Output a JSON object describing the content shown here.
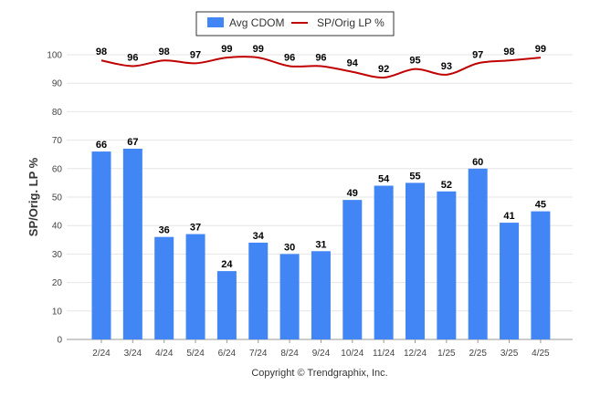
{
  "chart_data": {
    "type": "bar",
    "categories": [
      "2/24",
      "3/24",
      "4/24",
      "5/24",
      "6/24",
      "7/24",
      "8/24",
      "9/24",
      "10/24",
      "11/24",
      "12/24",
      "1/25",
      "2/25",
      "3/25",
      "4/25"
    ],
    "series": [
      {
        "name": "Avg CDOM",
        "type": "bar",
        "color": "#4285f4",
        "values": [
          66,
          67,
          36,
          37,
          24,
          34,
          30,
          31,
          49,
          54,
          55,
          52,
          60,
          41,
          45
        ]
      },
      {
        "name": "SP/Orig LP %",
        "type": "line",
        "color": "#c00000",
        "values": [
          98,
          96,
          98,
          97,
          99,
          99,
          96,
          96,
          94,
          92,
          95,
          93,
          97,
          98,
          99
        ]
      }
    ],
    "ylabel": "SP/Orig. LP %",
    "ylim": [
      0,
      100
    ],
    "yticks": [
      0,
      10,
      20,
      30,
      40,
      50,
      60,
      70,
      80,
      90,
      100
    ],
    "grid": true,
    "legend_position": "top-center"
  },
  "credit": "Copyright © Trendgraphix, Inc."
}
